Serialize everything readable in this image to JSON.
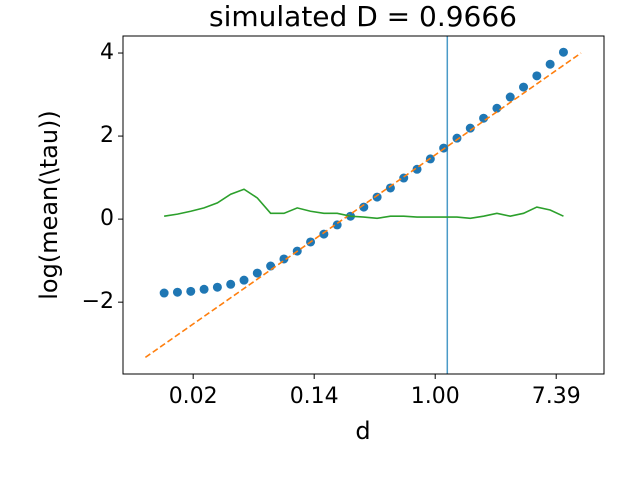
{
  "chart_data": {
    "type": "line",
    "title": "simulated D = 0.9666",
    "xlabel": "d",
    "ylabel": "log(mean(\\tau))",
    "xlim": [
      -5.16,
      2.79
    ],
    "ylim": [
      -3.73,
      4.41
    ],
    "xticks": [
      {
        "value": -4,
        "label": "0.02"
      },
      {
        "value": -2,
        "label": "0.14"
      },
      {
        "value": 0,
        "label": "1.00"
      },
      {
        "value": 2,
        "label": "7.39"
      }
    ],
    "yticks": [
      {
        "value": -2,
        "label": "−2"
      },
      {
        "value": 0,
        "label": "0"
      },
      {
        "value": 2,
        "label": "2"
      },
      {
        "value": 4,
        "label": "4"
      }
    ],
    "vline": {
      "x": 0.2,
      "color": "#4a9ac7"
    },
    "series": [
      {
        "style": "scatter",
        "color": "#1f77b4",
        "x": [
          -4.48,
          -4.26,
          -4.04,
          -3.82,
          -3.6,
          -3.38,
          -3.16,
          -2.94,
          -2.72,
          -2.5,
          -2.28,
          -2.06,
          -1.84,
          -1.62,
          -1.4,
          -1.18,
          -0.96,
          -0.74,
          -0.52,
          -0.3,
          -0.08,
          0.14,
          0.36,
          0.58,
          0.8,
          1.02,
          1.24,
          1.46,
          1.68,
          1.9,
          2.12
        ],
        "values": [
          -1.78,
          -1.76,
          -1.74,
          -1.69,
          -1.64,
          -1.57,
          -1.47,
          -1.3,
          -1.13,
          -0.96,
          -0.77,
          -0.55,
          -0.36,
          -0.14,
          0.07,
          0.29,
          0.53,
          0.75,
          0.99,
          1.2,
          1.45,
          1.71,
          1.95,
          2.19,
          2.43,
          2.67,
          2.94,
          3.18,
          3.45,
          3.73,
          4.02
        ]
      },
      {
        "style": "dashed",
        "color": "#ff7f0e",
        "x": [
          -4.79,
          2.41
        ],
        "values": [
          -3.33,
          4.0
        ]
      },
      {
        "style": "solid",
        "color": "#2ca02c",
        "x": [
          -4.48,
          -4.26,
          -4.04,
          -3.82,
          -3.6,
          -3.38,
          -3.16,
          -2.94,
          -2.72,
          -2.5,
          -2.28,
          -2.06,
          -1.84,
          -1.62,
          -1.4,
          -1.18,
          -0.96,
          -0.74,
          -0.52,
          -0.3,
          -0.08,
          0.14,
          0.36,
          0.58,
          0.8,
          1.02,
          1.24,
          1.46,
          1.68,
          1.9,
          2.12
        ],
        "values": [
          0.07,
          0.12,
          0.19,
          0.27,
          0.39,
          0.6,
          0.72,
          0.51,
          0.14,
          0.14,
          0.27,
          0.19,
          0.14,
          0.14,
          0.07,
          0.05,
          0.02,
          0.07,
          0.07,
          0.05,
          0.05,
          0.05,
          0.05,
          0.02,
          0.07,
          0.14,
          0.07,
          0.14,
          0.29,
          0.22,
          0.07
        ]
      }
    ]
  }
}
